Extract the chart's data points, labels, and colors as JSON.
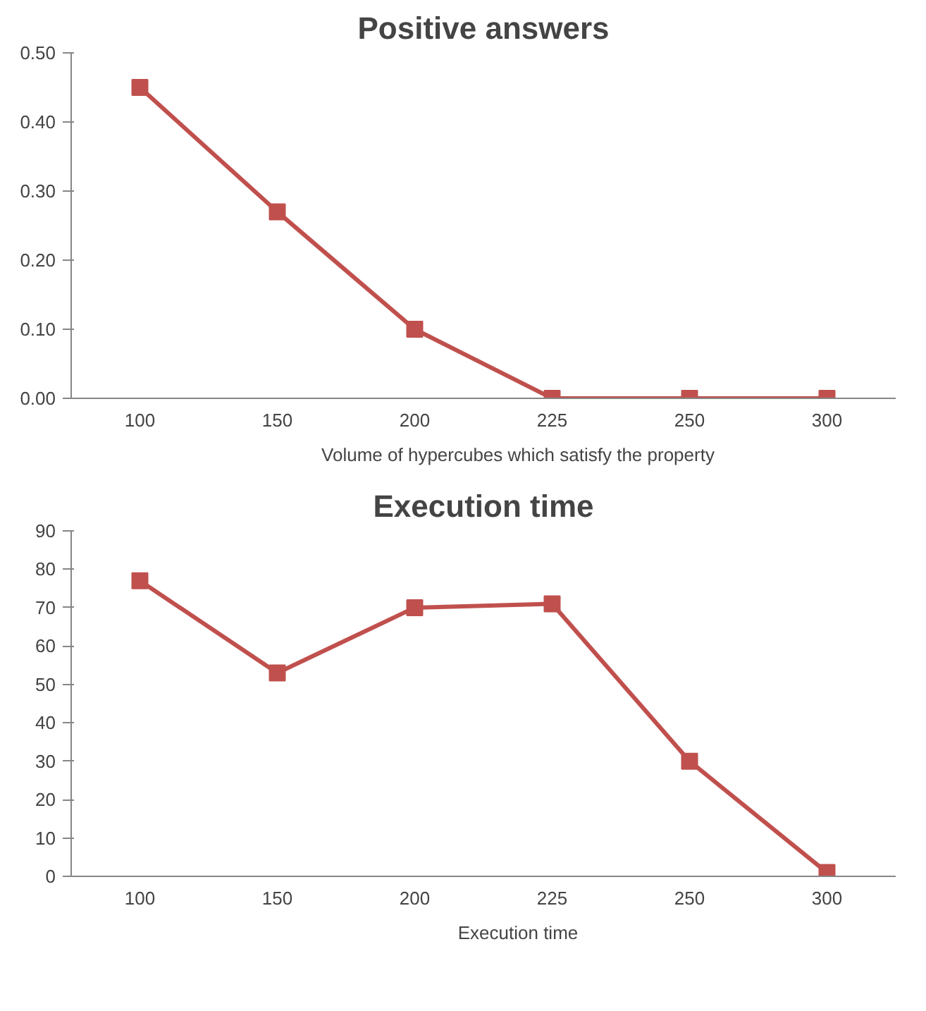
{
  "chart_data": [
    {
      "type": "line",
      "title": "Positive answers",
      "categories": [
        "100",
        "150",
        "200",
        "225",
        "250",
        "300"
      ],
      "series": [
        {
          "name": "Volume of hypercubes which satisfy the property",
          "color": "#c0504d",
          "values": [
            0.45,
            0.27,
            0.1,
            0.0,
            0.0,
            0.0
          ]
        }
      ],
      "ylim": [
        0,
        0.5
      ],
      "yticks": [
        {
          "value": 0,
          "label": "0.00"
        },
        {
          "value": 0.1,
          "label": "0.10"
        },
        {
          "value": 0.2,
          "label": "0.20"
        },
        {
          "value": 0.3,
          "label": "0.30"
        },
        {
          "value": 0.4,
          "label": "0.40"
        },
        {
          "value": 0.5,
          "label": "0.50"
        }
      ],
      "grid": false,
      "legend": "bottom",
      "marker": "square",
      "line_style": "solid"
    },
    {
      "type": "line",
      "title": "Execution time",
      "categories": [
        "100",
        "150",
        "200",
        "225",
        "250",
        "300"
      ],
      "series": [
        {
          "name": "Execution time",
          "color": "#c0504d",
          "values": [
            77,
            53,
            70,
            71,
            30,
            1
          ]
        }
      ],
      "ylim": [
        0,
        90
      ],
      "yticks": [
        0,
        10,
        20,
        30,
        40,
        50,
        60,
        70,
        80,
        90
      ],
      "grid": false,
      "legend": "bottom",
      "marker": "square",
      "line_style": "solid"
    }
  ]
}
